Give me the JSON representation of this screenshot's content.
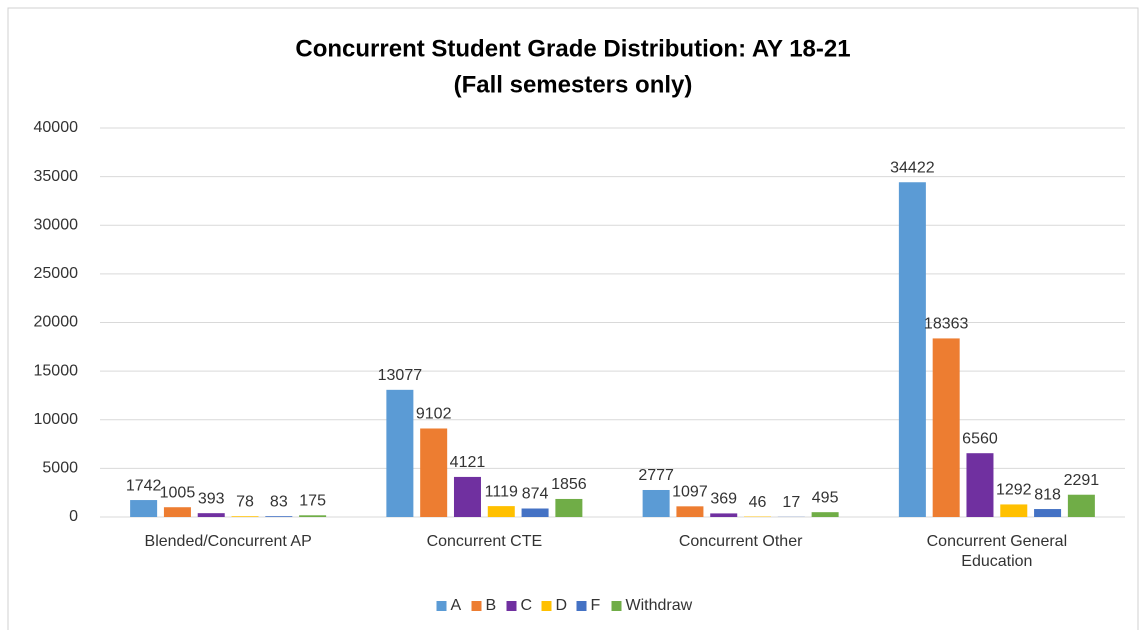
{
  "chart_data": {
    "type": "bar",
    "title": "Concurrent Student Grade Distribution: AY 18-21",
    "subtitle": "(Fall semesters only)",
    "categories": [
      "Blended/Concurrent AP",
      "Concurrent CTE",
      "Concurrent Other",
      "Concurrent General Education"
    ],
    "series": [
      {
        "name": "A",
        "color": "#5b9bd5",
        "values": [
          1742,
          13077,
          2777,
          34422
        ]
      },
      {
        "name": "B",
        "color": "#ed7d31",
        "values": [
          1005,
          9102,
          1097,
          18363
        ]
      },
      {
        "name": "C",
        "color": "#7030a0",
        "values": [
          393,
          4121,
          369,
          6560
        ]
      },
      {
        "name": "D",
        "color": "#ffc000",
        "values": [
          78,
          1119,
          46,
          1292
        ]
      },
      {
        "name": "F",
        "color": "#4472c4",
        "values": [
          83,
          874,
          17,
          818
        ]
      },
      {
        "name": "Withdraw",
        "color": "#70ad47",
        "values": [
          175,
          1856,
          495,
          2291
        ]
      }
    ],
    "ylim": [
      0,
      40000
    ],
    "yticks": [
      0,
      5000,
      10000,
      15000,
      20000,
      25000,
      30000,
      35000,
      40000
    ],
    "grid": true,
    "legend": "bottom"
  }
}
